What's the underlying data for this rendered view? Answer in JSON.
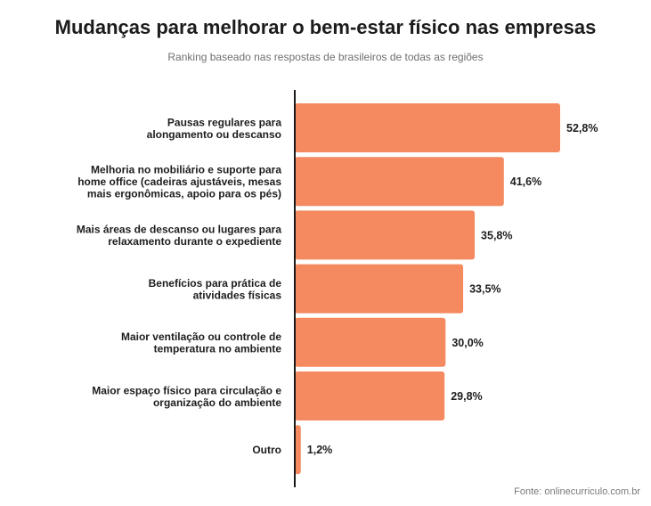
{
  "chart_data": {
    "type": "bar",
    "orientation": "horizontal",
    "title": "Mudanças para melhorar o bem-estar físico nas empresas",
    "subtitle": "Ranking baseado nas respostas de brasileiros de todas as regiões",
    "categories": [
      [
        "Pausas regulares para",
        "alongamento ou descanso"
      ],
      [
        "Melhoria no mobiliário e suporte para",
        "home office (cadeiras ajustáveis, mesas",
        "mais ergonômicas, apoio para os pés)"
      ],
      [
        "Mais áreas de descanso ou lugares para",
        "relaxamento durante o expediente"
      ],
      [
        "Benefícios para prática de",
        "atividades físicas"
      ],
      [
        "Maior ventilação ou controle de",
        "temperatura no ambiente"
      ],
      [
        "Maior espaço físico para circulação e",
        "organização do ambiente"
      ],
      [
        "Outro"
      ]
    ],
    "values": [
      52.8,
      41.6,
      35.8,
      33.5,
      30.0,
      29.8,
      1.2
    ],
    "value_labels": [
      "52,8%",
      "41,6%",
      "35,8%",
      "33,5%",
      "30,0%",
      "29,8%",
      "1,2%"
    ],
    "unit": "%",
    "xlim": [
      0,
      60
    ],
    "bar_color": "#f5895f",
    "axis_color": "#1a1a1a",
    "grid": false,
    "legend": "none"
  },
  "source": "Fonte: onlinecurriculo.com.br"
}
